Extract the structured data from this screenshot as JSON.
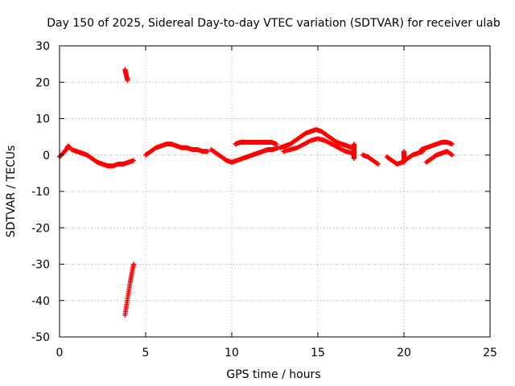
{
  "chart_data": {
    "type": "scatter",
    "title": "Day 150 of 2025, Sidereal Day-to-day VTEC variation (SDTVAR) for receiver ulab",
    "xlabel": "GPS time / hours",
    "ylabel": "SDTVAR / TECUs",
    "xlim": [
      0,
      25
    ],
    "ylim": [
      -50,
      30
    ],
    "xticks": [
      0,
      5,
      10,
      15,
      20,
      25
    ],
    "yticks": [
      -50,
      -40,
      -30,
      -20,
      -10,
      0,
      10,
      20,
      30
    ],
    "grid": true,
    "marker": "+",
    "color": "#ff0000",
    "series": [
      {
        "name": "ulab",
        "segments": [
          {
            "x": [
              0.0,
              0.2,
              0.4,
              0.5,
              0.6
            ],
            "y": [
              -0.5,
              0.5,
              1.5,
              2.5,
              2.0
            ]
          },
          {
            "x": [
              0.7,
              1.0,
              1.3,
              1.6,
              1.9,
              2.2,
              2.5,
              2.8,
              3.1,
              3.4,
              3.7,
              4.0,
              4.3
            ],
            "y": [
              1.5,
              1.0,
              0.5,
              0.0,
              -1.0,
              -2.0,
              -2.5,
              -3.0,
              -3.0,
              -2.5,
              -2.5,
              -2.0,
              -1.5
            ]
          },
          {
            "x": [
              3.8,
              3.85,
              3.9,
              3.95
            ],
            "y": [
              23.5,
              22.5,
              21.5,
              20.5
            ]
          },
          {
            "x": [
              3.8,
              3.9,
              4.0,
              4.1,
              4.2,
              4.3
            ],
            "y": [
              -44.0,
              -41.0,
              -38.0,
              -35.0,
              -32.5,
              -30.0
            ]
          },
          {
            "x": [
              5.0,
              5.3,
              5.6,
              5.9,
              6.2,
              6.5,
              6.8,
              7.1,
              7.4,
              7.7,
              8.0,
              8.3,
              8.6
            ],
            "y": [
              0.0,
              1.0,
              2.0,
              2.5,
              3.0,
              3.0,
              2.5,
              2.0,
              2.0,
              1.5,
              1.5,
              1.0,
              1.0
            ]
          },
          {
            "x": [
              8.8,
              9.1,
              9.4,
              9.7,
              10.0,
              10.3,
              10.6,
              10.9,
              11.2,
              11.5,
              11.8,
              12.1,
              12.4,
              12.7
            ],
            "y": [
              1.5,
              0.5,
              -0.5,
              -1.5,
              -2.0,
              -1.5,
              -1.0,
              -0.5,
              0.0,
              0.5,
              1.0,
              1.5,
              1.5,
              2.0
            ]
          },
          {
            "x": [
              10.2,
              10.5,
              10.8,
              11.1,
              11.4,
              11.7,
              12.0,
              12.3,
              12.6
            ],
            "y": [
              3.0,
              3.5,
              3.5,
              3.5,
              3.5,
              3.5,
              3.5,
              3.5,
              3.0
            ]
          },
          {
            "x": [
              12.8,
              13.1,
              13.4,
              13.7,
              14.0,
              14.3,
              14.6,
              14.9,
              15.2,
              15.5,
              15.8,
              16.1,
              16.4,
              16.7,
              17.0
            ],
            "y": [
              2.0,
              2.5,
              3.0,
              4.0,
              5.0,
              6.0,
              6.5,
              7.0,
              6.5,
              5.5,
              4.5,
              3.5,
              3.0,
              2.5,
              2.0
            ]
          },
          {
            "x": [
              13.0,
              13.4,
              13.8,
              14.2,
              14.6,
              15.0,
              15.4,
              15.8,
              16.2,
              16.6,
              17.0
            ],
            "y": [
              1.0,
              1.5,
              2.0,
              3.0,
              4.0,
              4.5,
              4.0,
              3.0,
              2.0,
              1.0,
              0.5
            ]
          },
          {
            "x": [
              17.1,
              17.1,
              17.1,
              17.1,
              17.1
            ],
            "y": [
              -1.0,
              0.0,
              1.0,
              2.0,
              3.0
            ]
          },
          {
            "x": [
              17.6,
              17.9,
              18.2,
              18.5
            ],
            "y": [
              0.0,
              -0.5,
              -1.5,
              -2.5
            ]
          },
          {
            "x": [
              19.0,
              19.3,
              19.6,
              19.9,
              20.2,
              20.5,
              20.8,
              21.1
            ],
            "y": [
              -0.5,
              -1.5,
              -2.5,
              -2.0,
              -1.0,
              0.0,
              0.5,
              1.0
            ]
          },
          {
            "x": [
              20.0,
              20.0,
              20.0,
              20.0
            ],
            "y": [
              -2.0,
              -1.0,
              0.0,
              1.0
            ]
          },
          {
            "x": [
              21.3,
              21.6,
              21.9,
              22.2,
              22.5,
              22.8
            ],
            "y": [
              -2.0,
              -1.0,
              0.0,
              0.5,
              1.0,
              0.0
            ]
          },
          {
            "x": [
              21.0,
              21.3,
              21.6,
              21.9,
              22.2,
              22.5,
              22.8
            ],
            "y": [
              1.5,
              2.0,
              2.5,
              3.0,
              3.5,
              3.5,
              3.0
            ]
          }
        ]
      }
    ]
  }
}
